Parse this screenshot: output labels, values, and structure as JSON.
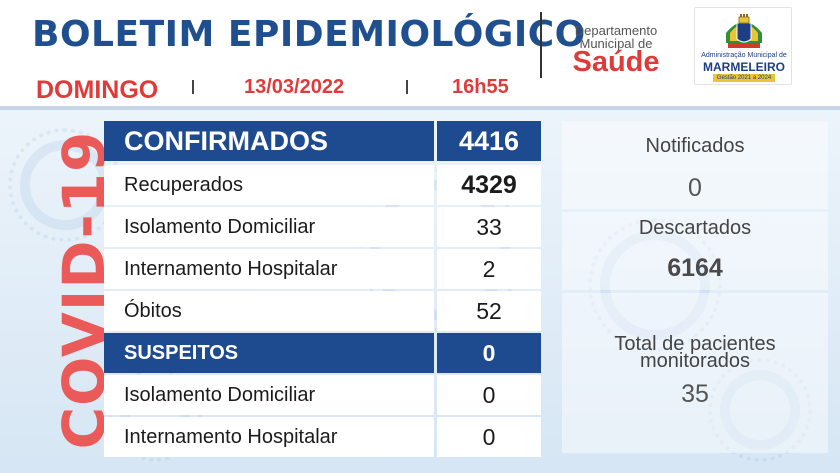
{
  "header": {
    "title": "BOLETIM EPIDEMIOLÓGICO",
    "day": "DOMINGO",
    "date": "13/03/2022",
    "time": "16h55"
  },
  "department": {
    "line1": "Departamento",
    "line2": "Municipal de",
    "name": "Saúde"
  },
  "logo": {
    "line1": "Administração Municipal de",
    "line2": "MARMELEIRO",
    "line3": "Gestão 2021 a 2024"
  },
  "side_label": "COVID-19",
  "table": {
    "confirmed": {
      "label": "CONFIRMADOS",
      "value": "4416"
    },
    "confirmed_rows": [
      {
        "label": "Recuperados",
        "value": "4329"
      },
      {
        "label": "Isolamento Domiciliar",
        "value": "33"
      },
      {
        "label": "Internamento Hospitalar",
        "value": "2"
      },
      {
        "label": "Óbitos",
        "value": "52"
      }
    ],
    "suspected": {
      "label": "SUSPEITOS",
      "value": "0"
    },
    "suspected_rows": [
      {
        "label": "Isolamento Domiciliar",
        "value": "0"
      },
      {
        "label": "Internamento Hospitalar",
        "value": "0"
      }
    ]
  },
  "side_stats": {
    "notified": {
      "label": "Notificados",
      "value": "0"
    },
    "discarded": {
      "label": "Descartados",
      "value": "6164"
    },
    "monitored": {
      "label_line1": "Total de pacientes",
      "label_line2": "monitorados",
      "value": "35"
    }
  },
  "colors": {
    "title_blue": "#1f4f8f",
    "accent_red": "#e03b3b",
    "header_row_blue": "#1e4a8f",
    "covid_red": "#ea5a58"
  }
}
